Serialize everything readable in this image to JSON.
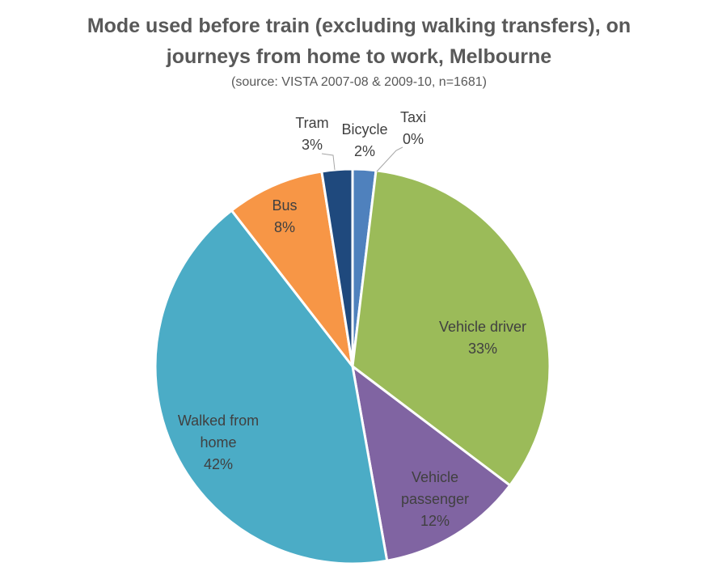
{
  "chart_data": {
    "type": "pie",
    "title_lines": [
      "Mode used before train (excluding walking transfers), on",
      "journeys from home to work, Melbourne"
    ],
    "subtitle": "(source: VISTA 2007-08 & 2009-10, n=1681)",
    "slices": [
      {
        "label": "Bicycle",
        "label_lines": [
          "Bicycle"
        ],
        "display": "2%",
        "value": 1.9,
        "color": "#4F81BD"
      },
      {
        "label": "Vehicle driver",
        "label_lines": [
          "Vehicle driver"
        ],
        "display": "33%",
        "value": 33.4,
        "color": "#9BBB59"
      },
      {
        "label": "Vehicle passenger",
        "label_lines": [
          "Vehicle",
          "passenger"
        ],
        "display": "12%",
        "value": 11.9,
        "color": "#8064A2"
      },
      {
        "label": "Walked from home",
        "label_lines": [
          "Walked from",
          "home"
        ],
        "display": "42%",
        "value": 42.3,
        "color": "#4BACC6"
      },
      {
        "label": "Bus",
        "label_lines": [
          "Bus"
        ],
        "display": "8%",
        "value": 8.0,
        "color": "#F79646"
      },
      {
        "label": "Tram",
        "label_lines": [
          "Tram"
        ],
        "display": "3%",
        "value": 2.5,
        "color": "#1F497D"
      },
      {
        "label": "Taxi",
        "label_lines": [
          "Taxi"
        ],
        "display": "0%",
        "value": 0.0,
        "color": "#C0504D"
      }
    ]
  }
}
